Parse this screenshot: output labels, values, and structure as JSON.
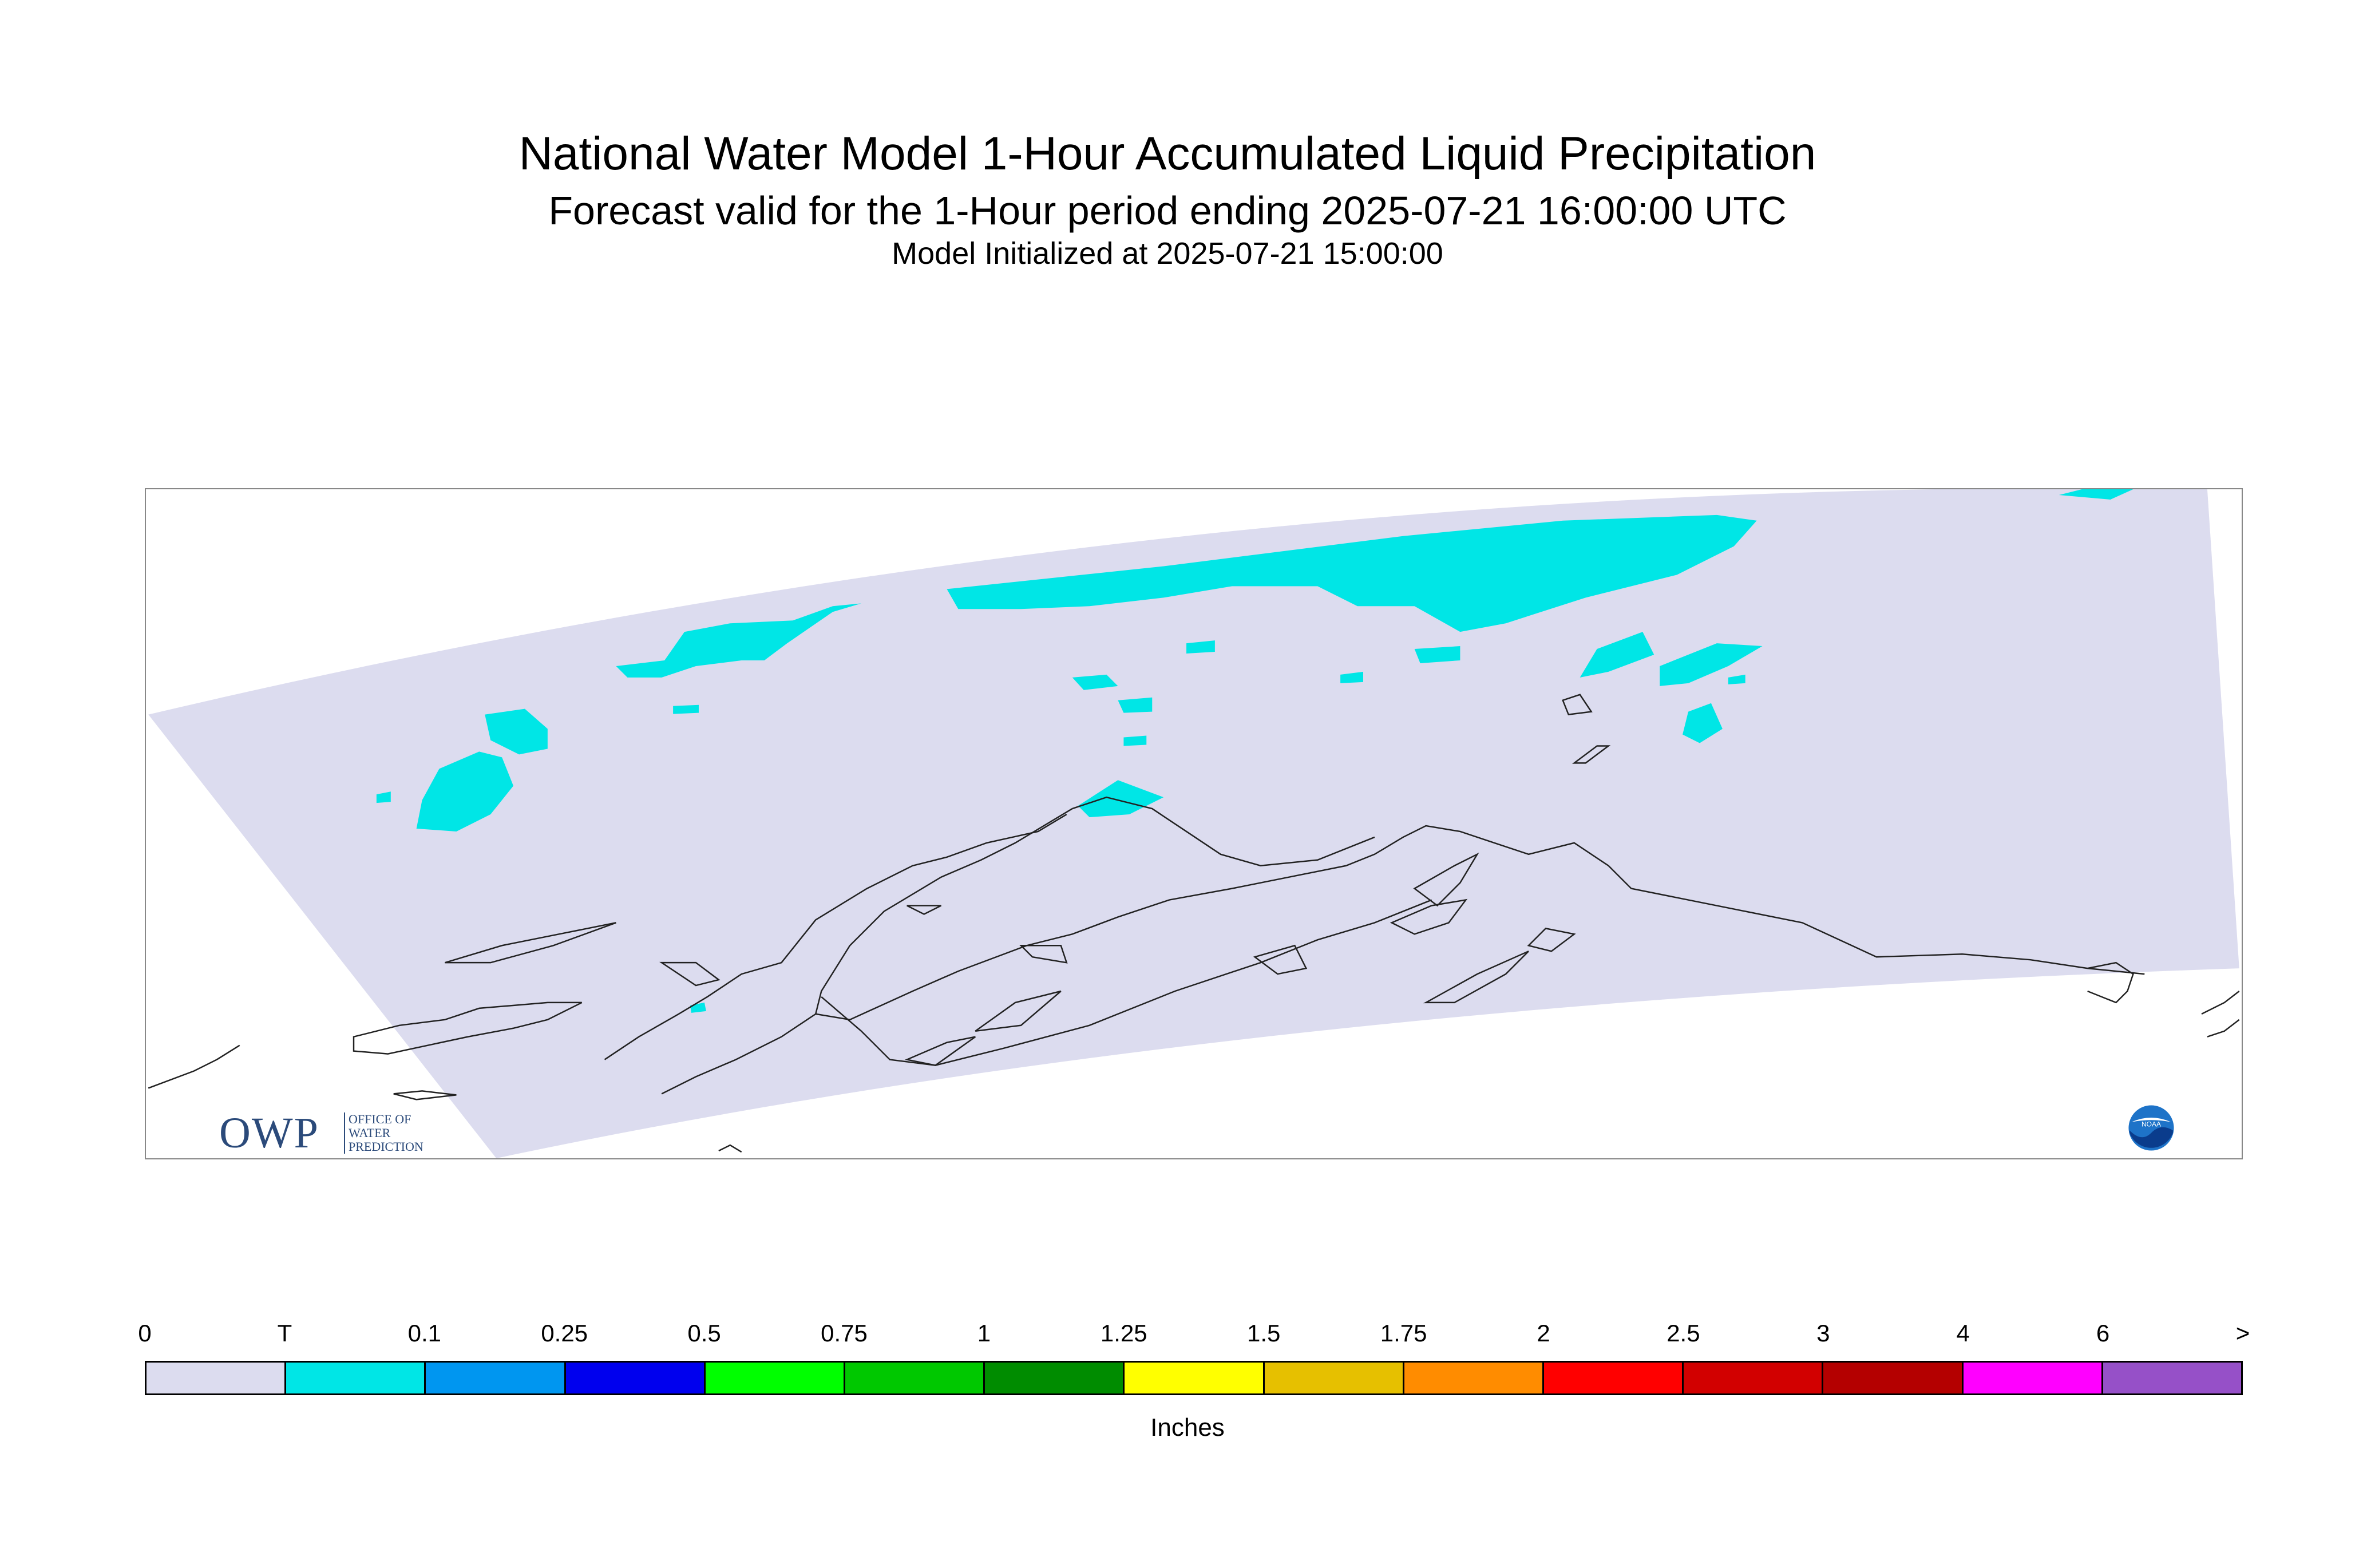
{
  "title": "National Water Model 1-Hour Accumulated Liquid Precipitation",
  "subtitle": "Forecast valid for the 1-Hour period ending 2025-07-21 16:00:00 UTC",
  "init_line": "Model Initialized at 2025-07-21 15:00:00",
  "logos": {
    "owp_main": "OWP",
    "owp_sub": "OFFICE OF\nWATER\nPREDICTION",
    "noaa_text": "NOAA"
  },
  "colors": {
    "domain_fill": "#dcdcef",
    "trace_fill": "#00e6e6",
    "coast": "#222222"
  },
  "legend": {
    "labels": [
      "0",
      "T",
      "0.1",
      "0.25",
      "0.5",
      "0.75",
      "1",
      "1.25",
      "1.5",
      "1.75",
      "2",
      "2.5",
      "3",
      "4",
      "6",
      ">"
    ],
    "colors": [
      "#dcdcef",
      "#00e6e6",
      "#0096f0",
      "#0000ee",
      "#00ff00",
      "#00c800",
      "#008c00",
      "#ffff00",
      "#e6c000",
      "#ff8c00",
      "#ff0000",
      "#d20000",
      "#b40000",
      "#ff00ff",
      "#9650c8"
    ],
    "units": "Inches"
  }
}
